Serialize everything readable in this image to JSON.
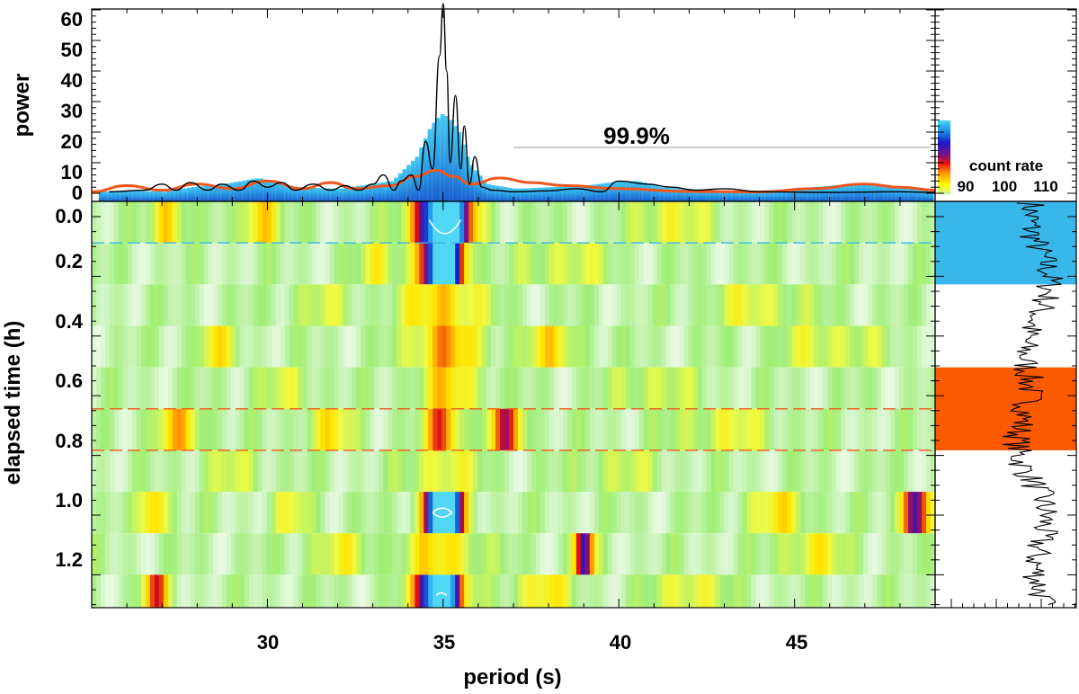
{
  "chart_data": {
    "type": "heatmap",
    "xlabel": "period (s)",
    "xlim": [
      25,
      49
    ],
    "x_ticks": [
      "30",
      "35",
      "40",
      "45"
    ],
    "x_tick_values": [
      30,
      35,
      40,
      45
    ],
    "top_panel": {
      "ylabel": "power",
      "ylim": [
        -3,
        62
      ],
      "y_ticks": [
        "0",
        "10",
        "20",
        "30",
        "40",
        "50",
        "60"
      ],
      "y_tick_values": [
        0,
        10,
        20,
        30,
        40,
        50,
        60
      ],
      "significance_label": "99.9%",
      "significance_level": 15,
      "significance_x_range": [
        37,
        48.9
      ],
      "series": [
        {
          "kind": "filled histogram",
          "color": "blue gradient",
          "x": [
            25.2,
            26,
            27,
            27.8,
            28.7,
            29.7,
            30.8,
            32,
            33.5,
            34.2,
            34.6,
            34.9,
            35.1,
            35.4,
            35.7,
            36.2,
            37,
            38,
            39,
            40,
            40.5,
            41.2,
            42.5,
            44,
            46,
            47,
            48,
            48.9
          ],
          "y": [
            0.5,
            1,
            0.5,
            2,
            3,
            5,
            2,
            1.5,
            4,
            12,
            22,
            26,
            25,
            20,
            10,
            3,
            1.5,
            2,
            2.5,
            4,
            4,
            2,
            1,
            0.6,
            2.5,
            3.5,
            2,
            0.5
          ]
        },
        {
          "kind": "line",
          "color": "#f0561c",
          "x": [
            25,
            26,
            27,
            28,
            29,
            30,
            31,
            31.8,
            32.5,
            33.5,
            34.2,
            34.8,
            35.3,
            35.8,
            36.6,
            37.5,
            38.5,
            40,
            42,
            44,
            45.5,
            47,
            48,
            49
          ],
          "y": [
            0.5,
            2.5,
            1,
            3,
            1.5,
            4,
            1.5,
            3.5,
            1.5,
            2.5,
            5.5,
            7.5,
            5.5,
            3,
            5,
            3.5,
            2.5,
            1.5,
            0.6,
            0.4,
            1.5,
            3,
            2,
            1
          ]
        },
        {
          "kind": "line",
          "color": "#000000",
          "x": [
            25.5,
            26.5,
            27,
            27.4,
            27.8,
            28.3,
            28.7,
            29.2,
            29.6,
            30,
            30.4,
            30.8,
            31.3,
            31.8,
            32.2,
            32.6,
            33,
            33.3,
            33.6,
            33.8,
            34.1,
            34.3,
            34.5,
            34.7,
            34.9,
            35.0,
            35.1,
            35.2,
            35.35,
            35.5,
            35.6,
            35.75,
            35.9,
            36.1,
            36.4,
            37,
            38,
            38.8,
            39.5,
            40,
            40.8,
            41.5,
            42.2,
            43,
            44,
            46,
            48,
            49
          ],
          "y": [
            0.5,
            1,
            3,
            1,
            3.5,
            1,
            3,
            1,
            4,
            2,
            3.5,
            1,
            3,
            1,
            2.5,
            1,
            3,
            6,
            1,
            4,
            6,
            1,
            17,
            8,
            45,
            62,
            40,
            10,
            32,
            8,
            22,
            3,
            12,
            2,
            1,
            0.5,
            0.8,
            1.5,
            0.5,
            4,
            3,
            2,
            1,
            1.5,
            0.5,
            0.3,
            0.5,
            0.3
          ]
        }
      ]
    },
    "colorbar": {
      "label": "count rate",
      "ticks": [
        "90",
        "100",
        "110"
      ]
    },
    "heatmap_panel": {
      "ylabel": "elapsed time (h)",
      "ylim": [
        1.38,
        -0.05
      ],
      "y_ticks": [
        "0.0",
        "0.2",
        "0.4",
        "0.6",
        "0.8",
        "1.0",
        "1.2"
      ],
      "y_tick_values": [
        0.0,
        0.2,
        0.4,
        0.6,
        0.8,
        1.0,
        1.2
      ],
      "row_boundaries_h": [
        -0.05,
        0.088,
        0.227,
        0.366,
        0.505,
        0.644,
        0.783,
        0.922,
        1.061,
        1.2,
        1.339,
        1.38
      ],
      "peaks_per_row": [
        [
          [
            35.0,
            1.0,
            0.9
          ],
          [
            29.8,
            0.4,
            0.5
          ],
          [
            27.2,
            0.35,
            0.5
          ],
          [
            41.5,
            0.25,
            1.0
          ]
        ],
        [
          [
            35.0,
            0.95,
            0.7
          ],
          [
            33.2,
            0.25,
            0.6
          ],
          [
            38.5,
            0.2,
            1.2
          ]
        ],
        [
          [
            35.0,
            0.35,
            1.2
          ],
          [
            31.5,
            0.15,
            1.0
          ],
          [
            44.0,
            0.2,
            1.5
          ]
        ],
        [
          [
            35.0,
            0.4,
            1.0
          ],
          [
            28.5,
            0.25,
            0.6
          ],
          [
            38.0,
            0.25,
            1.0
          ],
          [
            46.0,
            0.2,
            1.5
          ]
        ],
        [
          [
            35.2,
            0.3,
            1.0
          ],
          [
            30.5,
            0.15,
            1.0
          ],
          [
            41.0,
            0.18,
            1.2
          ]
        ],
        [
          [
            35.0,
            0.5,
            0.5
          ],
          [
            36.8,
            0.45,
            0.6
          ],
          [
            27.5,
            0.3,
            0.8
          ],
          [
            31.8,
            0.25,
            0.8
          ],
          [
            43.0,
            0.2,
            1.5
          ]
        ],
        [
          [
            35.0,
            0.25,
            1.0
          ],
          [
            29.0,
            0.15,
            1.0
          ],
          [
            40.0,
            0.15,
            1.2
          ]
        ],
        [
          [
            35.0,
            1.0,
            0.6
          ],
          [
            26.8,
            0.4,
            0.4
          ],
          [
            30.8,
            0.2,
            0.6
          ],
          [
            48.4,
            0.7,
            0.4
          ],
          [
            44.5,
            0.25,
            1.0
          ]
        ],
        [
          [
            35.0,
            0.3,
            1.2
          ],
          [
            39.0,
            0.65,
            0.3
          ],
          [
            32.0,
            0.2,
            1.0
          ],
          [
            45.5,
            0.25,
            1.0
          ]
        ],
        [
          [
            34.9,
            1.0,
            0.7
          ],
          [
            26.8,
            0.45,
            0.4
          ],
          [
            37.8,
            0.3,
            0.8
          ],
          [
            42.0,
            0.25,
            1.0
          ]
        ]
      ],
      "contours": [
        {
          "type": "arc-up",
          "row": 0,
          "x_range": [
            34.6,
            35.5
          ]
        },
        {
          "type": "closed",
          "row": 7,
          "x_range": [
            34.7,
            35.25
          ]
        },
        {
          "type": "arc-small",
          "row": 9,
          "x_range": [
            34.8,
            35.1
          ]
        }
      ],
      "markers": [
        {
          "time_h": 0.088,
          "color": "#3ab7ea",
          "dash": "dashed"
        },
        {
          "time_h": 0.644,
          "color": "#f0561c",
          "dash": "dashed"
        },
        {
          "time_h": 0.783,
          "color": "#f0561c",
          "dash": "dashed"
        }
      ]
    },
    "side_panel": {
      "content": "count-rate time series",
      "highlights": [
        {
          "color": "#3ab7ea",
          "time_range_h": [
            -0.05,
            0.227
          ]
        },
        {
          "color": "#f0561c",
          "time_range_h": [
            0.505,
            0.783
          ]
        }
      ]
    }
  }
}
